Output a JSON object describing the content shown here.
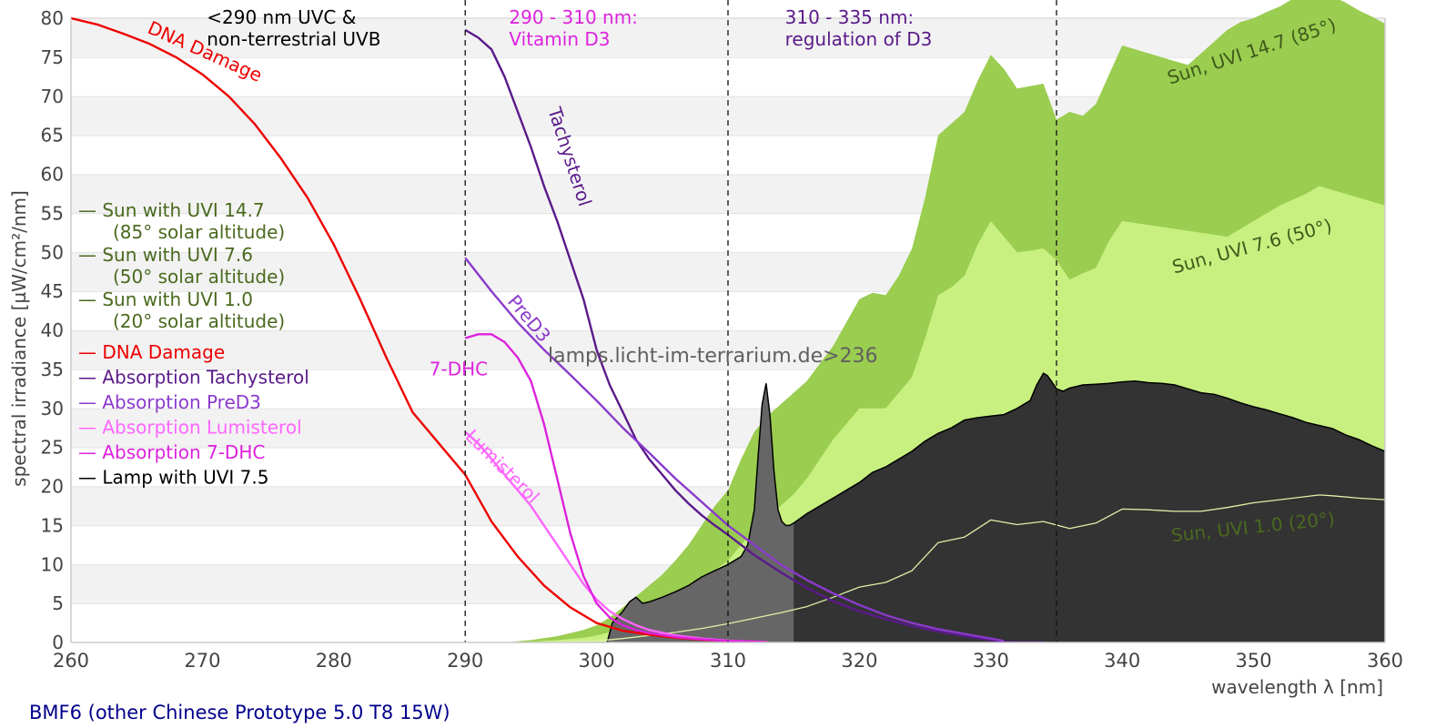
{
  "chart_data": {
    "type": "area",
    "title": "",
    "xlabel": "wavelength λ [nm]",
    "ylabel": "spectral irradiance [µW/cm²/nm]",
    "xlim": [
      260,
      360
    ],
    "ylim": [
      0,
      80
    ],
    "xticks": [
      260,
      270,
      280,
      290,
      300,
      310,
      320,
      330,
      340,
      350,
      360
    ],
    "yticks": [
      0,
      5,
      10,
      15,
      20,
      25,
      30,
      35,
      40,
      45,
      50,
      55,
      60,
      65,
      70,
      75,
      80
    ],
    "grid": "horizontal bands",
    "legend_position": "left",
    "vertical_markers": [
      290,
      310,
      335
    ],
    "region_labels": [
      {
        "x": 272,
        "lines": [
          "<290 nm UVC &",
          "non-terrestrial UVB"
        ],
        "color": "#000000"
      },
      {
        "x": 295,
        "lines": [
          "290 - 310 nm:",
          "Vitamin D3"
        ],
        "color": "#dd22dd"
      },
      {
        "x": 316,
        "lines": [
          "310 - 335 nm:",
          "regulation of D3"
        ],
        "color": "#5a1a8a"
      }
    ],
    "watermark": "lamps.licht-im-terrarium.de>236",
    "footer": "BMF6 (other Chinese Prototype 5.0 T8 15W)",
    "legend": [
      {
        "label": "Sun with UVI 14.7",
        "sub": "(85° solar altitude)",
        "color": "#4a6a1e"
      },
      {
        "label": "Sun with UVI 7.6",
        "sub": "(50° solar altitude)",
        "color": "#4a6a1e"
      },
      {
        "label": "Sun with UVI 1.0",
        "sub": "(20° solar altitude)",
        "color": "#4a6a1e"
      },
      {
        "label": "DNA Damage",
        "color": "#ee0000"
      },
      {
        "label": "Absorption Tachysterol",
        "color": "#5a1a8a"
      },
      {
        "label": "Absorption PreD3",
        "color": "#8a3acc"
      },
      {
        "label": "Absorption Lumisterol",
        "color": "#ff66ff"
      },
      {
        "label": "Absorption 7-DHC",
        "color": "#dd22dd"
      },
      {
        "label": "Lamp with UVI 7.5",
        "color": "#000000"
      }
    ],
    "series": [
      {
        "name": "Sun, UVI 14.7 (85°)",
        "kind": "area",
        "color": "#9acd50",
        "label": "Sun, UVI 14.7 (85°)",
        "label_at": [
          350,
          75
        ],
        "label_angle": -18,
        "label_color": "#3f5a1a",
        "x": [
          293,
          295,
          297,
          298,
          299,
          300,
          301,
          302,
          303,
          304,
          305,
          306,
          307,
          308,
          309,
          310,
          311,
          312,
          313,
          315,
          316,
          318,
          320,
          321,
          322,
          323,
          324,
          325,
          326,
          327,
          328,
          329,
          330,
          331,
          332,
          333,
          334,
          335,
          336,
          337,
          338,
          339,
          340,
          341,
          342,
          343,
          344,
          345,
          346,
          347,
          348,
          349,
          350,
          351,
          352,
          353,
          354,
          355,
          356,
          357,
          358,
          359,
          360
        ],
        "y": [
          0,
          0.3,
          0.8,
          1.2,
          1.6,
          2.2,
          3.2,
          4.5,
          5.9,
          7.3,
          8.7,
          10.5,
          12.5,
          15,
          17.5,
          19.5,
          23.5,
          27,
          29,
          32,
          33.5,
          38,
          44,
          44.8,
          44.5,
          47,
          50.5,
          57,
          65,
          66.5,
          68,
          72,
          75.3,
          73.5,
          71,
          71.3,
          71.6,
          67,
          68,
          67.5,
          69,
          72.8,
          76.5,
          76,
          75.5,
          75,
          74.5,
          74,
          75.5,
          77,
          78.5,
          79.5,
          80,
          80.8,
          81.5,
          82.5,
          83.5,
          83.5,
          82.8,
          82,
          81,
          80.2,
          79.3
        ]
      },
      {
        "name": "Sun, UVI 7.6 (50°)",
        "kind": "area",
        "color": "#c8f080",
        "label": "Sun, UVI 7.6 (50°)",
        "label_at": [
          350,
          50
        ],
        "label_angle": -15,
        "label_color": "#3f5a1a",
        "x": [
          294,
          297,
          299,
          300,
          301,
          302,
          303,
          304,
          305,
          306,
          307,
          308,
          309,
          310,
          311,
          312,
          313,
          314,
          315,
          316,
          318,
          319,
          320,
          321,
          322,
          323,
          324,
          325,
          326,
          327,
          328,
          329,
          330,
          331,
          332,
          333,
          334,
          335,
          336,
          337,
          338,
          339,
          340,
          342,
          344,
          346,
          348,
          350,
          352,
          354,
          355,
          356,
          358,
          360
        ],
        "y": [
          0,
          0.3,
          0.6,
          0.9,
          1.3,
          2,
          2.8,
          3.7,
          4.6,
          5.5,
          6.6,
          7.9,
          9.3,
          10.5,
          12.5,
          14.5,
          16,
          17.5,
          19,
          21,
          26,
          28,
          30,
          30,
          30,
          32,
          34,
          39,
          44.5,
          45.5,
          47,
          51,
          54,
          52,
          50,
          50.2,
          50.5,
          49,
          46.5,
          47.3,
          48,
          51.5,
          54,
          53.5,
          53,
          52.5,
          52,
          54,
          56,
          57.5,
          58.5,
          58,
          57,
          56
        ]
      },
      {
        "name": "Sun, UVI 1.0 (20°)",
        "kind": "line",
        "color": "#dff0a8",
        "label": "Sun, UVI 1.0 (20°)",
        "label_at": [
          350,
          14
        ],
        "label_angle": -6,
        "label_color": "#4a6a1e",
        "x": [
          296,
          300,
          302,
          304,
          306,
          308,
          310,
          312,
          314,
          316,
          318,
          320,
          322,
          324,
          326,
          328,
          330,
          332,
          334,
          336,
          338,
          340,
          342,
          344,
          346,
          348,
          350,
          352,
          354,
          355,
          356,
          358,
          360
        ],
        "y": [
          0,
          0.2,
          0.5,
          0.9,
          1.3,
          1.8,
          2.4,
          3.1,
          3.8,
          4.6,
          5.8,
          7.1,
          7.7,
          9.2,
          12.8,
          13.5,
          15.7,
          15.1,
          15.5,
          14.6,
          15.3,
          17.1,
          17,
          16.8,
          16.8,
          17.3,
          17.9,
          18.3,
          18.7,
          18.9,
          18.8,
          18.5,
          18.3
        ]
      },
      {
        "name": "Lamp with UVI 7.5",
        "kind": "area",
        "color": "#333333",
        "highlight_color": "#666666",
        "highlight_range": [
          300,
          315
        ],
        "x": [
          300.8,
          301.2,
          302,
          302.5,
          303,
          303.5,
          304,
          305,
          306,
          307,
          308,
          309,
          310,
          311,
          311.5,
          312,
          312.3,
          312.6,
          312.9,
          313.2,
          313.5,
          313.8,
          314.1,
          314.4,
          314.7,
          315,
          316,
          317,
          318,
          319,
          320,
          321,
          322,
          323,
          324,
          325,
          326,
          327,
          328,
          329,
          330,
          331,
          332,
          333,
          333.5,
          334,
          334.3,
          334.6,
          335,
          335.5,
          336,
          337,
          338,
          339,
          340,
          341,
          342,
          343,
          344,
          345,
          346,
          347,
          348,
          349,
          350,
          351,
          352,
          353,
          354,
          355,
          356,
          357,
          358,
          359,
          360
        ],
        "y": [
          0,
          2.5,
          4,
          5.2,
          5.8,
          5,
          5.2,
          5.8,
          6.5,
          7.3,
          8.4,
          9.2,
          10,
          11,
          12.5,
          17,
          24,
          30.5,
          33.2,
          29,
          22,
          17,
          15.5,
          15,
          15,
          15.3,
          16.5,
          17.5,
          18.5,
          19.5,
          20.5,
          21.8,
          22.5,
          23.5,
          24.5,
          25.8,
          26.8,
          27.5,
          28.5,
          28.8,
          29,
          29.2,
          30,
          31,
          33,
          34.5,
          34.2,
          33.5,
          32.5,
          32.2,
          32.6,
          33,
          33.1,
          33.2,
          33.4,
          33.5,
          33.3,
          33.2,
          33,
          32.5,
          32,
          31.8,
          31.3,
          30.7,
          30.2,
          29.8,
          29.3,
          28.8,
          28.2,
          27.8,
          27.4,
          26.6,
          26.0,
          25.2,
          24.5
        ]
      },
      {
        "name": "DNA Damage",
        "kind": "line",
        "color": "#ee0000",
        "label": "DNA Damage",
        "label_at": [
          270,
          75
        ],
        "label_angle": 24,
        "label_color": "#ee0000",
        "x": [
          260,
          262,
          264,
          266,
          268,
          270,
          272,
          274,
          276,
          278,
          280,
          282,
          284,
          286,
          288,
          290,
          292,
          294,
          296,
          298,
          300,
          302,
          304,
          306,
          308,
          310,
          312,
          313
        ],
        "y": [
          80,
          79.2,
          78,
          76.7,
          75,
          72.8,
          70,
          66.4,
          62,
          57,
          51,
          44,
          36.5,
          29.5,
          25.5,
          21.5,
          15.5,
          11,
          7.3,
          4.5,
          2.5,
          1.5,
          1,
          0.6,
          0.35,
          0.2,
          0.1,
          0.05
        ]
      },
      {
        "name": "Absorption Tachysterol",
        "kind": "line",
        "color": "#5a1a8a",
        "label": "Tachysterol",
        "label_at": [
          297.5,
          62
        ],
        "label_angle": 72,
        "label_color": "#5a1a8a",
        "x": [
          290,
          291,
          292,
          293,
          294,
          295,
          296,
          297,
          298,
          299,
          300,
          301,
          302,
          303,
          304,
          305,
          306,
          307,
          308,
          309,
          310,
          311,
          312,
          314,
          316,
          318,
          320,
          322,
          324,
          326,
          328,
          330,
          331,
          332,
          333,
          334
        ],
        "y": [
          78.5,
          77.5,
          76,
          72.5,
          68,
          63.5,
          58.5,
          54,
          49,
          44,
          37.5,
          33,
          29.5,
          26,
          23.5,
          21.5,
          19.5,
          17.8,
          16.3,
          15,
          13.8,
          12.5,
          11.2,
          9,
          7,
          5.3,
          4,
          3,
          2.1,
          1.4,
          0.8,
          0.3,
          0.1,
          0,
          0,
          0
        ]
      },
      {
        "name": "Absorption PreD3",
        "kind": "line",
        "color": "#8a3acc",
        "label": "PreD3",
        "label_at": [
          294.5,
          41
        ],
        "label_angle": 50,
        "label_color": "#8a3acc",
        "x": [
          290,
          292,
          294,
          296,
          298,
          300,
          302,
          304,
          306,
          308,
          310,
          312,
          314,
          316,
          318,
          320,
          322,
          324,
          326,
          328,
          330,
          331
        ],
        "y": [
          49.3,
          45,
          41,
          37.5,
          34.3,
          31,
          27.5,
          24.3,
          21,
          18,
          15,
          12.5,
          10,
          8,
          6.3,
          4.8,
          3.5,
          2.5,
          1.7,
          1.1,
          0.5,
          0.2
        ]
      },
      {
        "name": "Absorption Lumisterol",
        "kind": "line",
        "color": "#ff66ff",
        "label": "Lumisterol",
        "label_at": [
          292.5,
          22
        ],
        "label_angle": 45,
        "label_color": "#ff66ff",
        "x": [
          290,
          291,
          292,
          293,
          294,
          295,
          296,
          297,
          298,
          299,
          300,
          301,
          302,
          303,
          304,
          306,
          308,
          310,
          312,
          313
        ],
        "y": [
          27,
          25.5,
          23.5,
          21.5,
          19.5,
          17.5,
          15,
          12.5,
          10,
          7.5,
          5.5,
          4,
          3,
          2.2,
          1.6,
          0.9,
          0.5,
          0.25,
          0.1,
          0.05
        ]
      },
      {
        "name": "Absorption 7-DHC",
        "kind": "line",
        "color": "#dd22dd",
        "label": "7-DHC",
        "label_at": [
          289.5,
          34.2
        ],
        "label_angle": 0,
        "label_color": "#dd22dd",
        "x": [
          290,
          291,
          292,
          293,
          294,
          295,
          296,
          297,
          298,
          299,
          300,
          301,
          302,
          303,
          304,
          306,
          308,
          310,
          312,
          313
        ],
        "y": [
          39,
          39.5,
          39.5,
          38.5,
          36.5,
          33.5,
          28,
          21,
          14,
          8.5,
          5,
          3.2,
          2.2,
          1.6,
          1.2,
          0.7,
          0.4,
          0.2,
          0.1,
          0
        ]
      }
    ]
  }
}
